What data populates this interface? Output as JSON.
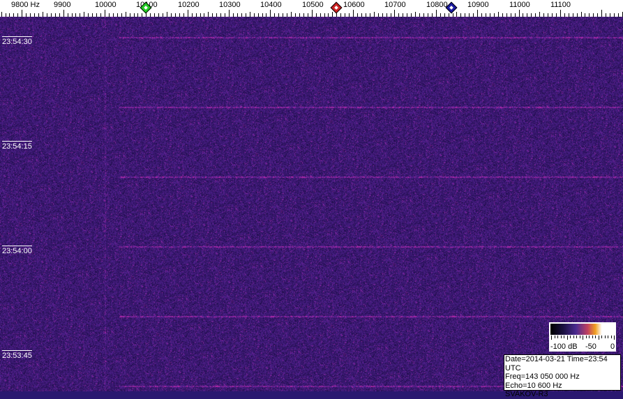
{
  "frequency_axis": {
    "labels": [
      "9800 Hz",
      "9900",
      "10000",
      "10100",
      "10200",
      "10300",
      "10400",
      "10500",
      "10600",
      "10700",
      "10800",
      "10900",
      "11000",
      "11100"
    ],
    "values": [
      9800,
      9900,
      10000,
      10100,
      10200,
      10300,
      10400,
      10500,
      10600,
      10700,
      10800,
      10900,
      11000,
      11100
    ]
  },
  "markers": [
    {
      "name": "green-marker",
      "freq": 10100,
      "color": "#22cc22"
    },
    {
      "name": "red-marker",
      "freq": 10560,
      "color": "#cc2222"
    },
    {
      "name": "blue-marker",
      "freq": 10837,
      "color": "#1a1aa0"
    }
  ],
  "time_labels": [
    "23:54:30",
    "23:54:15",
    "23:54:00",
    "23:53:45"
  ],
  "colorbar": {
    "labels": [
      "-100 dB",
      "-50",
      "0"
    ]
  },
  "info": {
    "line1": "Date=2014-03-21 Time=23:54 UTC",
    "line2": "Freq=143 050 000 Hz",
    "line3": "Echo=10 600 Hz",
    "line4": "SVAKOV-R3"
  }
}
